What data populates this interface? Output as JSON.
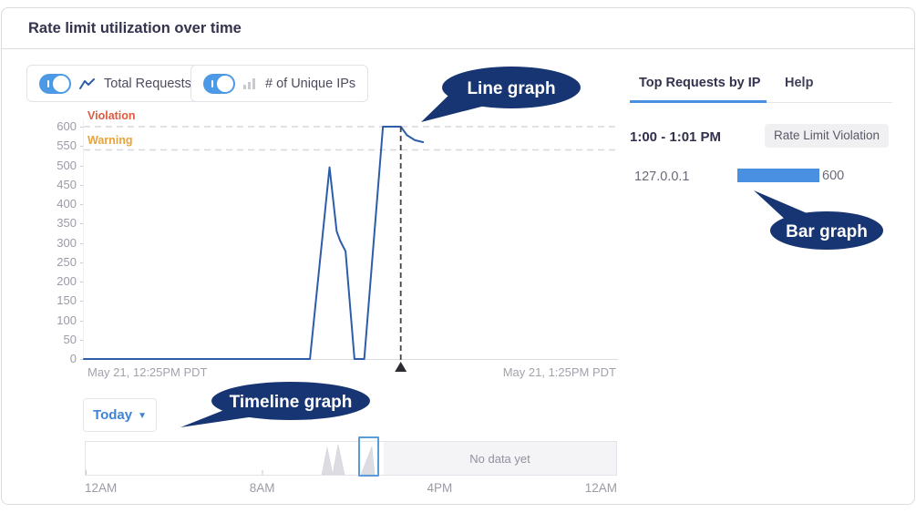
{
  "header": {
    "title": "Rate limit utilization over time"
  },
  "toolbar": {
    "toggles": [
      {
        "label": "Total Requests",
        "icon": "line-chart-icon",
        "state": "on"
      },
      {
        "label": "# of Unique IPs",
        "icon": "bar-chart-icon",
        "state": "on"
      }
    ]
  },
  "chart": {
    "y_ticks": [
      600,
      550,
      500,
      450,
      400,
      350,
      300,
      250,
      200,
      150,
      100,
      50,
      0
    ],
    "x_start_label": "May 21, 12:25PM PDT",
    "x_end_label": "May 21, 1:25PM PDT",
    "thresholds": [
      {
        "label": "Violation",
        "value": 600,
        "color": "#df5a3e"
      },
      {
        "label": "Warning",
        "value": 540,
        "color": "#e8a33d"
      }
    ],
    "line_color": "#2d5da9"
  },
  "chart_data": [
    {
      "type": "line",
      "title": "Rate limit utilization over time",
      "series": [
        {
          "name": "Total Requests",
          "color": "#2d5da9",
          "x_unit": "minutes after May 21, 12:25PM PDT",
          "points": [
            [
              0,
              0
            ],
            [
              25.4,
              0
            ],
            [
              27.6,
              495
            ],
            [
              28.4,
              330
            ],
            [
              28.8,
              305
            ],
            [
              29.4,
              278
            ],
            [
              30.4,
              0
            ],
            [
              31.5,
              0
            ],
            [
              33.6,
              600
            ],
            [
              35.6,
              600
            ],
            [
              36.3,
              578
            ],
            [
              37.2,
              565
            ],
            [
              38.1,
              560
            ]
          ]
        }
      ],
      "xlabel_start": "May 21, 12:25PM PDT",
      "xlabel_end": "May 21, 1:25PM PDT",
      "ylim": [
        0,
        620
      ],
      "y_tick_step": 50,
      "thresholds": [
        {
          "label": "Violation",
          "value": 600
        },
        {
          "label": "Warning",
          "value": 540
        }
      ],
      "marker": {
        "x_minute": 35.6,
        "style": "dashed-vertical-with-triangle"
      },
      "legend_position": "none",
      "grid": "threshold-dashes-only"
    },
    {
      "type": "bar",
      "orientation": "horizontal",
      "title": "Top Requests by IP",
      "categories": [
        "127.0.0.1"
      ],
      "values": [
        600
      ],
      "xlim": [
        0,
        600
      ]
    },
    {
      "type": "area",
      "title": "Timeline (Today)",
      "x_ticks": [
        "12AM",
        "8AM",
        "4PM",
        "12AM"
      ],
      "note": "small traffic peaks near 10:50AM-11:30AM, selected window ~12:25PM-1:25PM, no data after selection"
    }
  ],
  "timeline": {
    "range_label": "Today",
    "no_data_label": "No data yet",
    "axis_labels": [
      "12AM",
      "8AM",
      "4PM",
      "12AM"
    ],
    "peaks": [
      [
        [
          260,
          37
        ],
        [
          266,
          7
        ],
        [
          272,
          37
        ]
      ],
      [
        [
          272,
          37
        ],
        [
          278,
          4
        ],
        [
          285,
          37
        ]
      ],
      [
        [
          303,
          37
        ],
        [
          315,
          6
        ],
        [
          318,
          37
        ]
      ]
    ]
  },
  "panel": {
    "tabs": [
      {
        "label": "Top Requests by IP",
        "active": true
      },
      {
        "label": "Help",
        "active": false
      }
    ],
    "time_range": "1:00 - 1:01 PM",
    "badge": "Rate Limit Violation",
    "rows": [
      {
        "ip": "127.0.0.1",
        "count": "600"
      }
    ],
    "bar_color": "#4a90e2",
    "bar_max": 600
  },
  "callouts": [
    {
      "label": "Line graph"
    },
    {
      "label": "Bar graph"
    },
    {
      "label": "Timeline graph"
    }
  ],
  "colors": {
    "accent_blue": "#4a90e2",
    "toggle_blue": "#4c99e6",
    "line_blue": "#2d5da9",
    "callout_navy": "#173572",
    "violation_red": "#df5a3e",
    "warning_orange": "#e8a33d"
  }
}
